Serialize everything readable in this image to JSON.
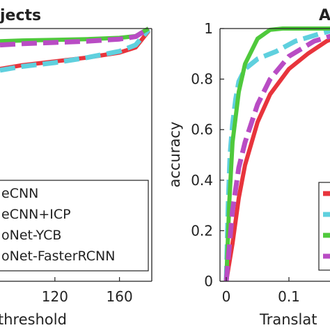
{
  "chart_data": [
    {
      "type": "line",
      "title": "jects",
      "xlabel": "threshold",
      "ylabel": "",
      "xlim": [
        86,
        180
      ],
      "ylim": [
        0,
        1
      ],
      "x_ticks": [
        120,
        160
      ],
      "legend_position": "bottom-right",
      "series": [
        {
          "name": "eCNN",
          "color": "#e8343c",
          "dash": "solid",
          "x": [
            86,
            100,
            120,
            140,
            160,
            170,
            178
          ],
          "y": [
            0.84,
            0.855,
            0.87,
            0.885,
            0.905,
            0.925,
            0.99
          ]
        },
        {
          "name": "eCNN+ICP",
          "color": "#5fd0de",
          "dash": "dashed",
          "x": [
            86,
            100,
            120,
            140,
            160,
            170,
            178
          ],
          "y": [
            0.835,
            0.85,
            0.865,
            0.885,
            0.91,
            0.935,
            0.995
          ]
        },
        {
          "name": "oNet-YCB",
          "color": "#4fc93c",
          "dash": "solid",
          "x": [
            86,
            100,
            120,
            140,
            160,
            170,
            178
          ],
          "y": [
            0.95,
            0.953,
            0.955,
            0.958,
            0.963,
            0.97,
            1.0
          ]
        },
        {
          "name": "oNet-FasterRCNN",
          "color": "#b94cc4",
          "dash": "dashed",
          "x": [
            86,
            100,
            120,
            140,
            160,
            170,
            178
          ],
          "y": [
            0.935,
            0.94,
            0.945,
            0.95,
            0.958,
            0.968,
            1.0
          ]
        }
      ]
    },
    {
      "type": "line",
      "title": "A",
      "xlabel": "Translat",
      "ylabel": "accuracy",
      "xlim": [
        -0.01,
        0.18
      ],
      "ylim": [
        0,
        1
      ],
      "x_ticks": [
        0,
        0.1
      ],
      "x_tick_labels": [
        "0",
        "0.1"
      ],
      "y_ticks": [
        0,
        0.2,
        0.4,
        0.6,
        0.8,
        1
      ],
      "legend_position": "bottom-right",
      "series": [
        {
          "name": "",
          "color": "#e8343c",
          "dash": "solid",
          "x": [
            0,
            0.01,
            0.02,
            0.03,
            0.05,
            0.07,
            0.1,
            0.13,
            0.16,
            0.18
          ],
          "y": [
            0,
            0.15,
            0.33,
            0.46,
            0.63,
            0.74,
            0.84,
            0.9,
            0.95,
            0.97
          ]
        },
        {
          "name": "",
          "color": "#5fd0de",
          "dash": "dashed",
          "x": [
            0,
            0.003,
            0.006,
            0.01,
            0.015,
            0.02,
            0.03,
            0.05,
            0.08,
            0.11,
            0.15,
            0.18
          ],
          "y": [
            0,
            0.3,
            0.5,
            0.62,
            0.72,
            0.79,
            0.84,
            0.88,
            0.91,
            0.95,
            0.98,
            1.0
          ]
        },
        {
          "name": "",
          "color": "#4fc93c",
          "dash": "solid",
          "x": [
            0,
            0.005,
            0.01,
            0.02,
            0.03,
            0.05,
            0.07,
            0.09,
            0.12,
            0.18
          ],
          "y": [
            0,
            0.32,
            0.55,
            0.75,
            0.86,
            0.96,
            0.995,
            1.0,
            1.0,
            1.0
          ]
        },
        {
          "name": "",
          "color": "#b94cc4",
          "dash": "dashed",
          "x": [
            0,
            0.01,
            0.02,
            0.03,
            0.05,
            0.07,
            0.1,
            0.14,
            0.18
          ],
          "y": [
            0,
            0.28,
            0.45,
            0.55,
            0.7,
            0.8,
            0.89,
            0.95,
            0.98
          ]
        }
      ]
    }
  ]
}
